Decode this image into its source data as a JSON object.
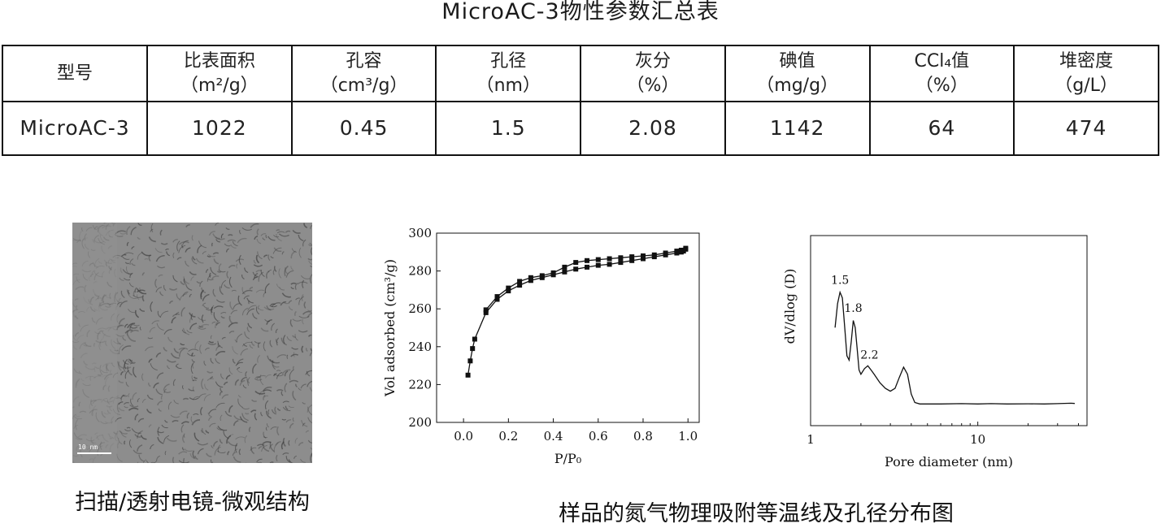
{
  "title": "MicroAC-3物性参数汇总表",
  "table": {
    "headers": [
      {
        "name": "型号",
        "unit": ""
      },
      {
        "name": "比表面积",
        "unit": "（m²/g）"
      },
      {
        "name": "孔容",
        "unit": "（cm³/g）"
      },
      {
        "name": "孔径",
        "unit": "（nm）"
      },
      {
        "name": "灰分",
        "unit": "（%）"
      },
      {
        "name": "碘值",
        "unit": "（mg/g）"
      },
      {
        "name": "CCl₄值",
        "unit": "（%）"
      },
      {
        "name": "堆密度",
        "unit": "（g/L）"
      }
    ],
    "rows": [
      [
        "MicroAC-3",
        "1022",
        "0.45",
        "1.5",
        "2.08",
        "1142",
        "64",
        "474"
      ]
    ]
  },
  "tem_image": {
    "scale_label": "10 nm",
    "caption": "扫描/透射电镜-微观结构"
  },
  "caption_isotherm": "样品的氮气物理吸附等温线及孔径分布图",
  "chart_data": [
    {
      "type": "line",
      "title": "",
      "xlabel": "P/P₀",
      "ylabel": "Vol adsorbed (cm³/g)",
      "xlim": [
        -0.12,
        1.05
      ],
      "ylim": [
        200,
        300
      ],
      "xticks": [
        0.0,
        0.2,
        0.4,
        0.6,
        0.8,
        1.0
      ],
      "xtick_labels": [
        "0.0",
        "0.2",
        "0.4",
        "0.6",
        "0.8",
        "1.0"
      ],
      "yticks": [
        200,
        220,
        240,
        260,
        280,
        300
      ],
      "ytick_labels": [
        "200",
        "220",
        "240",
        "260",
        "280",
        "300"
      ],
      "marker": "square",
      "series": [
        {
          "x": [
            0.02,
            0.03,
            0.04,
            0.05,
            0.1,
            0.15,
            0.2,
            0.25,
            0.3,
            0.35,
            0.4,
            0.45,
            0.5,
            0.55,
            0.6,
            0.65,
            0.7,
            0.75,
            0.8,
            0.85,
            0.9,
            0.95,
            0.97,
            0.98,
            0.99
          ],
          "y": [
            225,
            232.5,
            239,
            244,
            258,
            265,
            269.5,
            272.5,
            275,
            276.5,
            278,
            279.5,
            281,
            282,
            283,
            283.5,
            284.5,
            285.5,
            286.5,
            287.5,
            288.5,
            289.5,
            290,
            290.5,
            291.5
          ]
        },
        {
          "x": [
            0.99,
            0.97,
            0.95,
            0.9,
            0.85,
            0.8,
            0.75,
            0.7,
            0.65,
            0.6,
            0.55,
            0.5,
            0.45,
            0.4,
            0.35,
            0.3,
            0.25,
            0.2,
            0.15,
            0.1
          ],
          "y": [
            292,
            291,
            290.5,
            289.5,
            288.5,
            288,
            287.5,
            287,
            286.5,
            286,
            285.5,
            284.5,
            282,
            279,
            277.5,
            276.5,
            274.5,
            271,
            266.5,
            259.5
          ]
        }
      ]
    },
    {
      "type": "line",
      "title": "",
      "xlabel": "Pore diameter (nm)",
      "ylabel": "dV/dlog (D)",
      "xscale": "log",
      "xlim": [
        1,
        45
      ],
      "xticks": [
        1,
        10
      ],
      "xtick_labels": [
        "1",
        "10"
      ],
      "ylim": [
        0,
        1
      ],
      "yticks_shown": false,
      "series": [
        {
          "x": [
            1.4,
            1.45,
            1.5,
            1.55,
            1.6,
            1.65,
            1.7,
            1.75,
            1.8,
            1.85,
            1.9,
            1.95,
            2.0,
            2.1,
            2.2,
            2.3,
            2.4,
            2.6,
            2.8,
            3.0,
            3.2,
            3.4,
            3.6,
            3.8,
            4.0,
            4.2,
            4.5,
            5,
            6,
            8,
            10,
            12,
            15,
            20,
            25,
            30,
            36,
            38
          ],
          "y": [
            0.55,
            0.72,
            0.8,
            0.76,
            0.55,
            0.35,
            0.32,
            0.45,
            0.6,
            0.55,
            0.4,
            0.25,
            0.22,
            0.26,
            0.28,
            0.25,
            0.22,
            0.16,
            0.12,
            0.1,
            0.12,
            0.2,
            0.27,
            0.22,
            0.08,
            0.02,
            0.01,
            0.01,
            0.01,
            0.012,
            0.01,
            0.012,
            0.01,
            0.011,
            0.01,
            0.012,
            0.015,
            0.013
          ]
        }
      ],
      "annotations": [
        {
          "x": 1.5,
          "y": 0.86,
          "text": "1.5"
        },
        {
          "x": 1.8,
          "y": 0.66,
          "text": "1.8"
        },
        {
          "x": 2.25,
          "y": 0.33,
          "text": "2.2"
        }
      ]
    }
  ]
}
